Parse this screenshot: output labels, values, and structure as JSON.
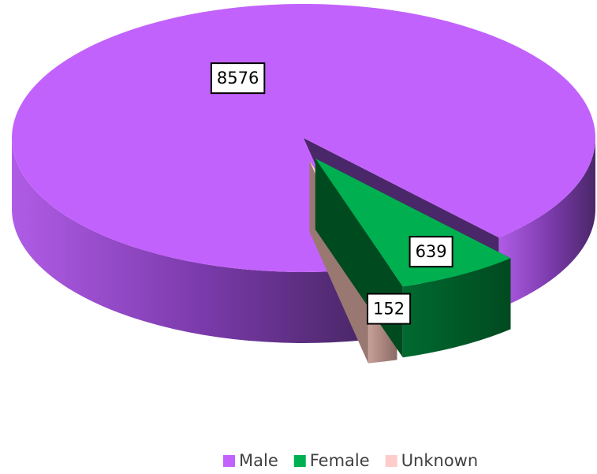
{
  "chart_data": {
    "type": "pie3d",
    "categories": [
      "Male",
      "Female",
      "Unknown"
    ],
    "values": [
      8576,
      639,
      152
    ],
    "colors": [
      "#c262fc",
      "#00b050",
      "#ffcccc"
    ],
    "legend": "bottom"
  }
}
